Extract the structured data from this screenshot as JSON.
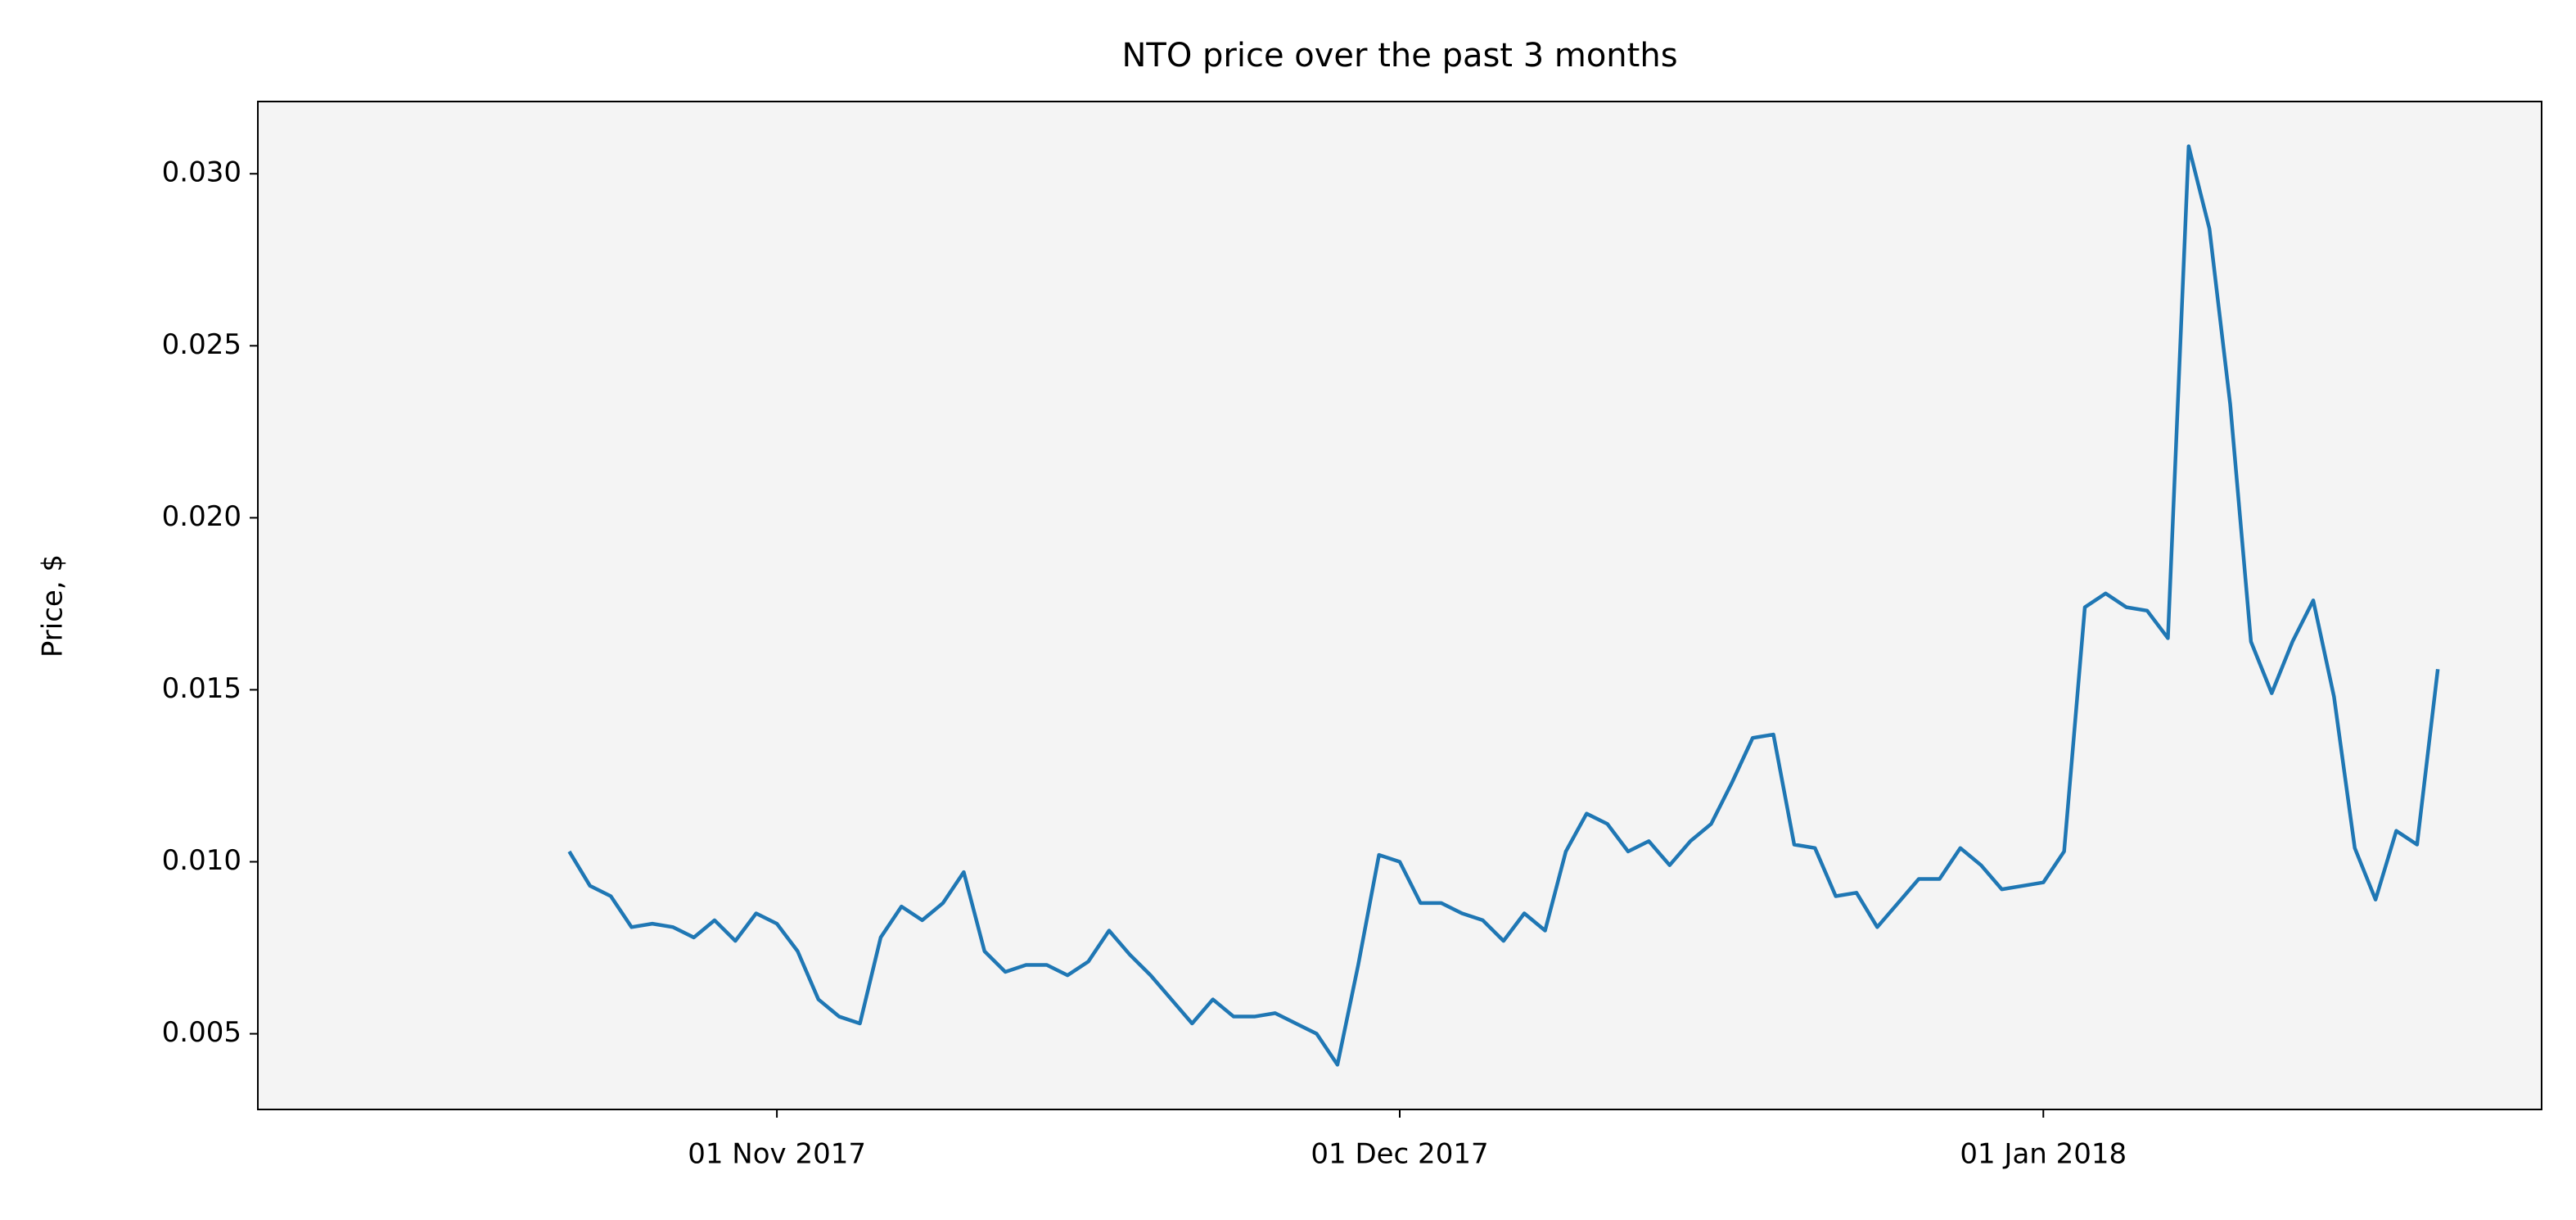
{
  "chart_data": {
    "type": "line",
    "title": "NTO price over the past 3 months",
    "y_label": "Price, $",
    "x": [
      "2017-10-22",
      "2017-10-23",
      "2017-10-24",
      "2017-10-25",
      "2017-10-26",
      "2017-10-27",
      "2017-10-28",
      "2017-10-29",
      "2017-10-30",
      "2017-10-31",
      "2017-11-01",
      "2017-11-02",
      "2017-11-03",
      "2017-11-04",
      "2017-11-05",
      "2017-11-06",
      "2017-11-07",
      "2017-11-08",
      "2017-11-09",
      "2017-11-10",
      "2017-11-11",
      "2017-11-12",
      "2017-11-13",
      "2017-11-14",
      "2017-11-15",
      "2017-11-16",
      "2017-11-17",
      "2017-11-18",
      "2017-11-19",
      "2017-11-20",
      "2017-11-21",
      "2017-11-22",
      "2017-11-23",
      "2017-11-24",
      "2017-11-25",
      "2017-11-26",
      "2017-11-27",
      "2017-11-28",
      "2017-11-29",
      "2017-11-30",
      "2017-12-01",
      "2017-12-02",
      "2017-12-03",
      "2017-12-04",
      "2017-12-05",
      "2017-12-06",
      "2017-12-07",
      "2017-12-08",
      "2017-12-09",
      "2017-12-10",
      "2017-12-11",
      "2017-12-12",
      "2017-12-13",
      "2017-12-14",
      "2017-12-15",
      "2017-12-16",
      "2017-12-17",
      "2017-12-18",
      "2017-12-19",
      "2017-12-20",
      "2017-12-21",
      "2017-12-22",
      "2017-12-23",
      "2017-12-24",
      "2017-12-25",
      "2017-12-26",
      "2017-12-27",
      "2017-12-28",
      "2017-12-29",
      "2017-12-30",
      "2017-12-31",
      "2018-01-01",
      "2018-01-02",
      "2018-01-03",
      "2018-01-04",
      "2018-01-05",
      "2018-01-06",
      "2018-01-07",
      "2018-01-08",
      "2018-01-09",
      "2018-01-10",
      "2018-01-11",
      "2018-01-12",
      "2018-01-13",
      "2018-01-14",
      "2018-01-15",
      "2018-01-16",
      "2018-01-17",
      "2018-01-18",
      "2018-01-19",
      "2018-01-20"
    ],
    "series": [
      {
        "color": "#1f77b4",
        "values": [
          0.0103,
          0.0093,
          0.009,
          0.0081,
          0.0082,
          0.0081,
          0.0078,
          0.0083,
          0.0077,
          0.0085,
          0.0082,
          0.0074,
          0.006,
          0.0055,
          0.0053,
          0.0078,
          0.0087,
          0.0083,
          0.0088,
          0.0097,
          0.0074,
          0.0068,
          0.007,
          0.007,
          0.0067,
          0.0071,
          0.008,
          0.0073,
          0.0067,
          0.006,
          0.0053,
          0.006,
          0.0055,
          0.0055,
          0.0056,
          0.0053,
          0.005,
          0.0041,
          0.007,
          0.0102,
          0.01,
          0.0088,
          0.0088,
          0.0085,
          0.0083,
          0.0077,
          0.0085,
          0.008,
          0.0103,
          0.0114,
          0.0111,
          0.0103,
          0.0106,
          0.0099,
          0.0106,
          0.0111,
          0.0123,
          0.0136,
          0.0137,
          0.0105,
          0.0104,
          0.009,
          0.0091,
          0.0081,
          0.0088,
          0.0095,
          0.0095,
          0.0104,
          0.0099,
          0.0092,
          0.0093,
          0.0094,
          0.0103,
          0.0174,
          0.0178,
          0.0174,
          0.0173,
          0.0165,
          0.0308,
          0.0284,
          0.0233,
          0.0164,
          0.0149,
          0.0164,
          0.0176,
          0.0148,
          0.0104,
          0.0089,
          0.0109,
          0.0105,
          0.0156
        ]
      }
    ],
    "xlim": [
      "2017-10-07",
      "2018-01-25"
    ],
    "xticks": [
      {
        "value": "2017-11-01",
        "label": "01 Nov 2017"
      },
      {
        "value": "2017-12-01",
        "label": "01 Dec 2017"
      },
      {
        "value": "2018-01-01",
        "label": "01 Jan 2018"
      }
    ],
    "ylim": [
      0.0028,
      0.0321
    ],
    "yticks": [
      0.005,
      {
        "value": 0.01,
        "label": "0.010"
      },
      0.015,
      {
        "value": 0.02,
        "label": "0.020"
      },
      0.025,
      {
        "value": 0.03,
        "label": "0.030"
      }
    ],
    "background": "#f4f4f4"
  }
}
